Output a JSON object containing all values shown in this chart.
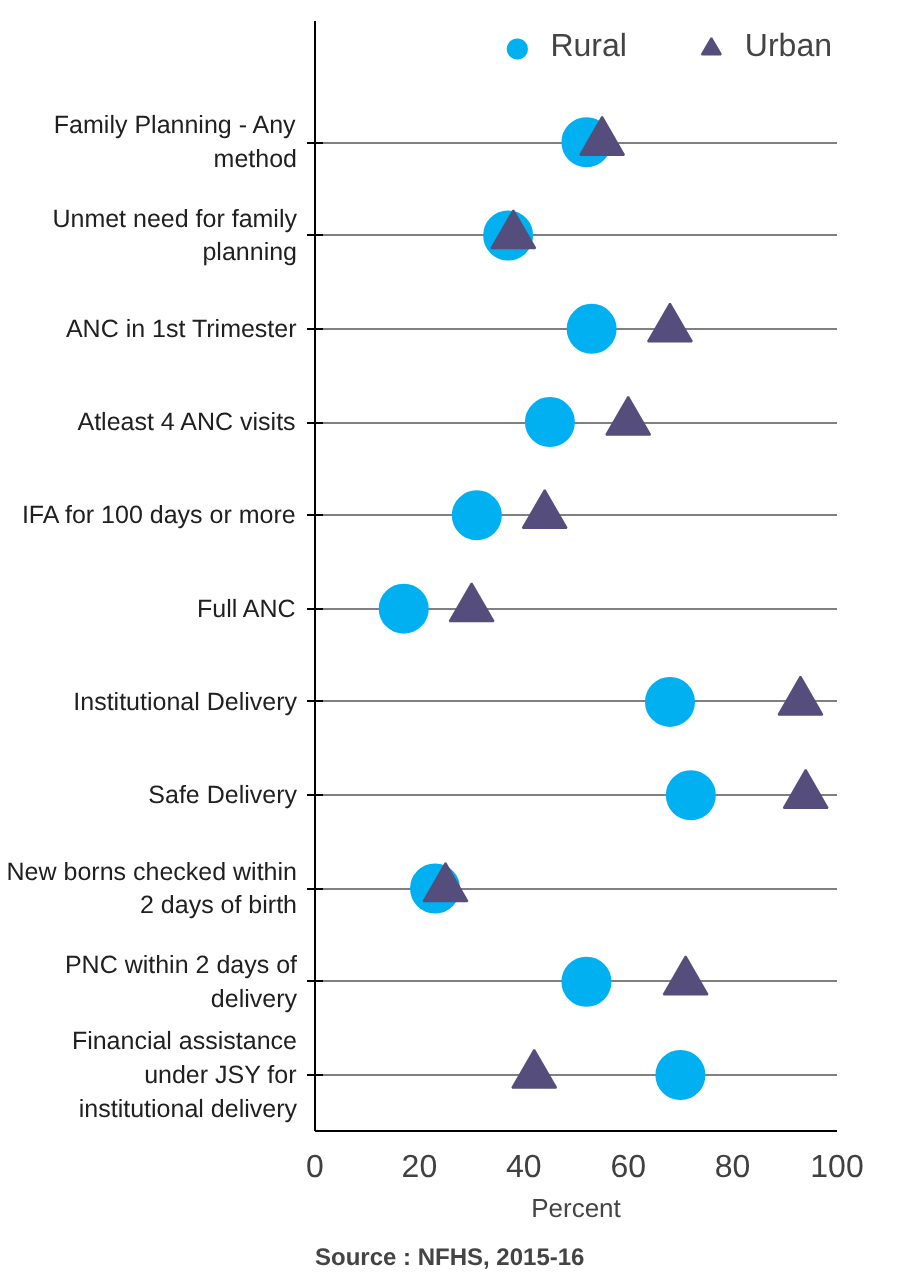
{
  "chart_data": {
    "type": "scatter",
    "orientation": "horizontal",
    "xlabel": "Percent",
    "categories": [
      "Family Planning - Any method",
      "Unmet need for family planning",
      "ANC in 1st Trimester",
      "Atleast 4 ANC visits",
      "IFA for 100 days or more",
      "Full ANC",
      "Institutional Delivery",
      "Safe Delivery",
      "New borns checked within 2 days of birth",
      "PNC within 2 days of delivery",
      "Financial assistance under JSY for institutional delivery"
    ],
    "series": [
      {
        "name": "Rural",
        "color": "#00b0f0",
        "marker": "circle",
        "values": [
          52,
          37,
          53,
          45,
          31,
          17,
          68,
          72,
          23,
          52,
          70
        ]
      },
      {
        "name": "Urban",
        "color": "#554e7c",
        "marker": "triangle",
        "values": [
          55,
          38,
          68,
          60,
          44,
          30,
          93,
          94,
          25,
          71,
          42
        ]
      }
    ],
    "xlim": [
      0,
      100
    ],
    "xticks": [
      0,
      20,
      40,
      60,
      80,
      100
    ],
    "grid": "y",
    "legend": "top right",
    "annotations": [
      "Source : NFHS, 2015-16"
    ]
  }
}
